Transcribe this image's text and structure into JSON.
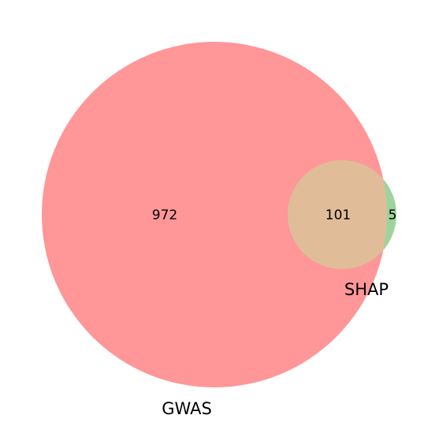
{
  "diagram": {
    "type": "venn2",
    "sets": [
      {
        "name": "GWAS",
        "color": "#ff9698"
      },
      {
        "name": "SHAP",
        "color": "#9dd39c"
      }
    ],
    "overlap_color": "#e0bd98",
    "regions": {
      "gwas_only": "972",
      "both": "101",
      "shap_only": "5"
    }
  }
}
